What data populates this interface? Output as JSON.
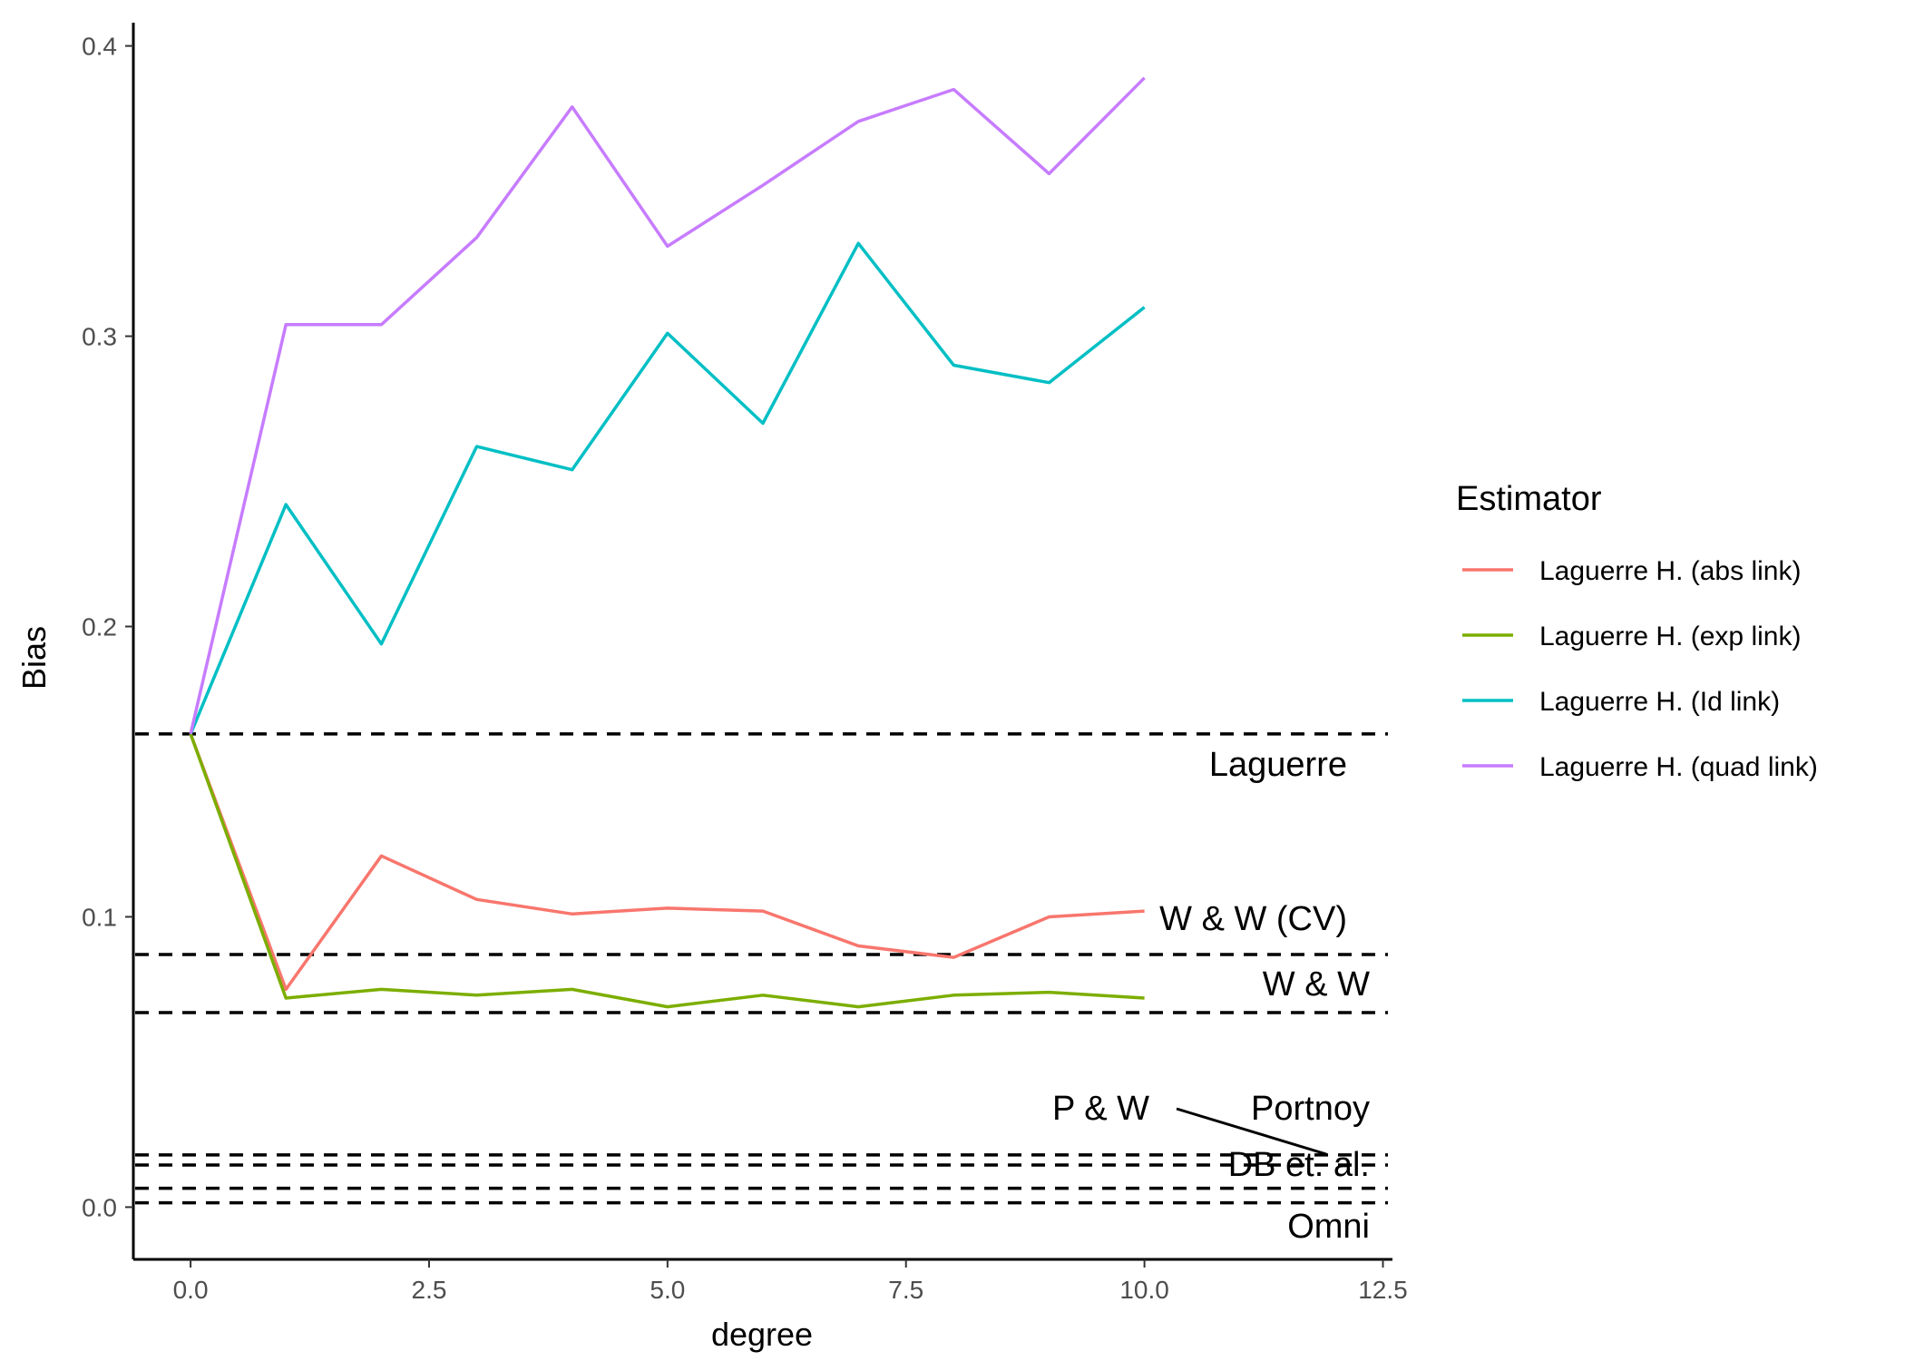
{
  "chart_data": {
    "type": "line",
    "title": "",
    "xlabel": "degree",
    "ylabel": "Bias",
    "xlim": [
      -0.6,
      12.6
    ],
    "ylim": [
      -0.018,
      0.408
    ],
    "xticks": [
      0.0,
      2.5,
      5.0,
      7.5,
      10.0,
      12.5
    ],
    "xtick_labels": [
      "0.0",
      "2.5",
      "5.0",
      "7.5",
      "10.0",
      "12.5"
    ],
    "yticks": [
      0.0,
      0.1,
      0.2,
      0.3,
      0.4
    ],
    "ytick_labels": [
      "0.0",
      "0.1",
      "0.2",
      "0.3",
      "0.4"
    ],
    "grid": false,
    "x": [
      0,
      1,
      2,
      3,
      4,
      5,
      6,
      7,
      8,
      9,
      10
    ],
    "series": [
      {
        "name": "Laguerre H. (abs link)",
        "color": "#F8766D",
        "values": [
          0.163,
          0.075,
          0.121,
          0.106,
          0.101,
          0.103,
          0.102,
          0.09,
          0.086,
          0.1,
          0.102
        ]
      },
      {
        "name": "Laguerre H. (exp link)",
        "color": "#7CAE00",
        "values": [
          0.163,
          0.072,
          0.075,
          0.073,
          0.075,
          0.069,
          0.073,
          0.069,
          0.073,
          0.074,
          0.072
        ]
      },
      {
        "name": "Laguerre H. (Id link)",
        "color": "#00BFC4",
        "values": [
          0.163,
          0.242,
          0.194,
          0.262,
          0.254,
          0.301,
          0.27,
          0.332,
          0.29,
          0.284,
          0.31
        ]
      },
      {
        "name": "Laguerre H. (quad link)",
        "color": "#C77CFF",
        "values": [
          0.163,
          0.304,
          0.304,
          0.334,
          0.379,
          0.331,
          0.352,
          0.374,
          0.385,
          0.356,
          0.389
        ]
      }
    ],
    "reference_lines": [
      {
        "label": "Laguerre",
        "value": 0.163
      },
      {
        "label": "W & W (CV)",
        "value": 0.087
      },
      {
        "label": "W & W",
        "value": 0.067
      },
      {
        "label": "Portnoy",
        "value": 0.018
      },
      {
        "label": "P & W",
        "value": 0.0145
      },
      {
        "label": "DB et. al.",
        "value": 0.0065
      },
      {
        "label": "Omni",
        "value": 0.0015
      }
    ],
    "legend": {
      "title": "Estimator",
      "position": "right"
    }
  }
}
